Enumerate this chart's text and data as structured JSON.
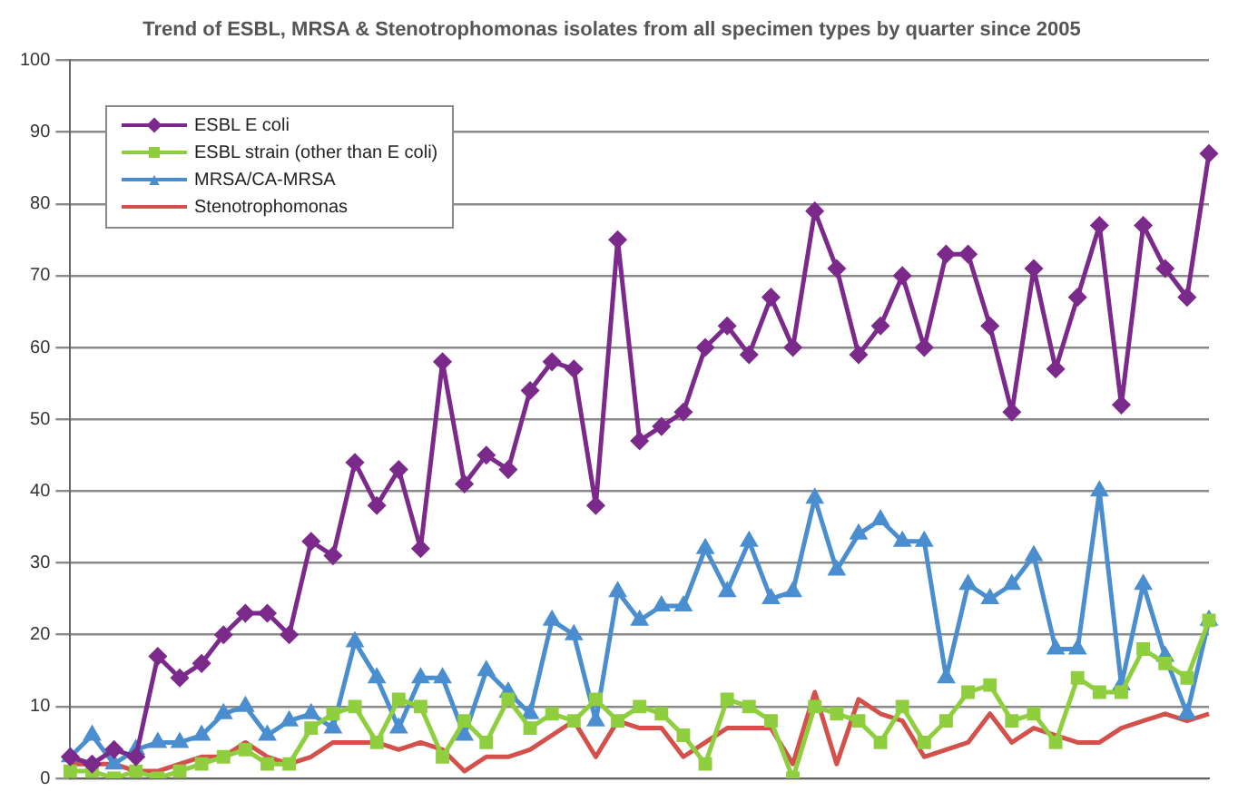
{
  "chart_data": {
    "type": "line",
    "title": "Trend of ESBL, MRSA & Stenotrophomonas isolates from all specimen types by quarter since 2005",
    "categories": [
      null,
      null,
      null,
      null,
      null,
      null,
      null,
      null,
      null,
      null,
      null,
      null,
      null,
      null,
      null,
      null,
      null,
      null,
      null,
      null,
      null,
      null,
      null,
      null,
      null,
      null,
      null,
      null,
      null,
      null,
      null,
      null,
      null,
      null,
      null,
      null,
      null,
      null,
      null,
      null,
      null,
      null,
      null,
      null,
      null,
      null,
      null,
      null,
      null,
      null,
      null,
      null,
      null
    ],
    "series": [
      {
        "name": "ESBL E coli",
        "color": "#7b2a8c",
        "marker": "diamond",
        "values": [
          3,
          2,
          4,
          3,
          17,
          14,
          16,
          20,
          23,
          23,
          20,
          33,
          31,
          44,
          38,
          43,
          32,
          58,
          41,
          45,
          43,
          54,
          58,
          57,
          38,
          75,
          47,
          49,
          51,
          60,
          63,
          59,
          67,
          60,
          79,
          71,
          59,
          63,
          70,
          60,
          73,
          73,
          63,
          51,
          71,
          57,
          67,
          77,
          52,
          77,
          71,
          67,
          87
        ]
      },
      {
        "name": "ESBL strain (other than E coli)",
        "color": "#8fce3f",
        "marker": "square",
        "values": [
          1,
          1,
          0,
          1,
          0,
          1,
          2,
          3,
          4,
          2,
          2,
          7,
          9,
          10,
          5,
          11,
          10,
          3,
          8,
          5,
          11,
          7,
          9,
          8,
          11,
          8,
          10,
          9,
          6,
          2,
          11,
          10,
          8,
          0,
          10,
          9,
          8,
          5,
          10,
          5,
          8,
          12,
          13,
          8,
          9,
          5,
          14,
          12,
          12,
          18,
          16,
          14,
          22
        ]
      },
      {
        "name": "MRSA/CA-MRSA",
        "color": "#4a8ed0",
        "marker": "triangle",
        "values": [
          3,
          6,
          2,
          4,
          5,
          5,
          6,
          9,
          10,
          6,
          8,
          9,
          7,
          19,
          14,
          7,
          14,
          14,
          6,
          15,
          12,
          9,
          22,
          20,
          8,
          26,
          22,
          24,
          24,
          32,
          26,
          33,
          25,
          26,
          39,
          29,
          34,
          36,
          33,
          33,
          14,
          27,
          25,
          27,
          31,
          18,
          18,
          40,
          13,
          27,
          17,
          9,
          22
        ]
      },
      {
        "name": "Stenotrophomonas",
        "color": "#d4504a",
        "marker": "none",
        "values": [
          2,
          2,
          2,
          1,
          1,
          2,
          3,
          3,
          5,
          3,
          2,
          3,
          5,
          5,
          5,
          4,
          5,
          4,
          1,
          3,
          3,
          4,
          6,
          8,
          3,
          8,
          7,
          7,
          3,
          5,
          7,
          7,
          7,
          2,
          12,
          2,
          11,
          9,
          8,
          3,
          4,
          5,
          9,
          5,
          7,
          6,
          5,
          5,
          7,
          8,
          9,
          8,
          9
        ]
      }
    ],
    "ylim": [
      0,
      100
    ],
    "yticks": [
      0,
      10,
      20,
      30,
      40,
      50,
      60,
      70,
      80,
      90,
      100
    ],
    "grid": "y",
    "legend": "top left",
    "line_style": "solid"
  }
}
